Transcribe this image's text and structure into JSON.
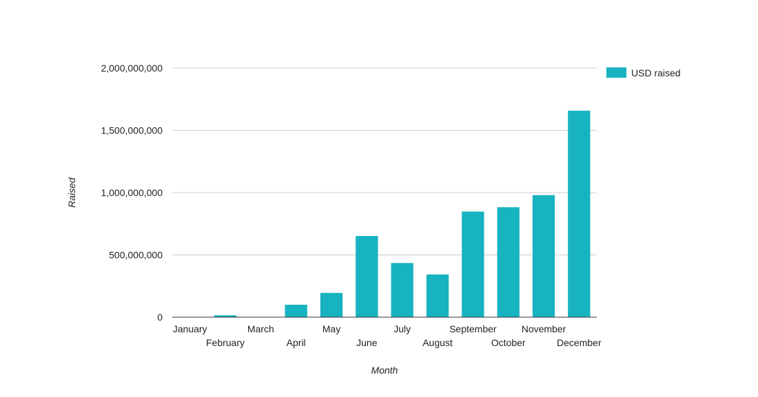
{
  "chart_data": {
    "type": "bar",
    "title": "",
    "xlabel": "Month",
    "ylabel": "Raised",
    "ylim": [
      0,
      2000000000
    ],
    "yticks": [
      0,
      500000000,
      1000000000,
      1500000000,
      2000000000
    ],
    "ytick_labels": [
      "0",
      "500,000,000",
      "1,000,000,000",
      "1,500,000,000",
      "2,000,000,000"
    ],
    "categories": [
      "January",
      "February",
      "March",
      "April",
      "May",
      "June",
      "July",
      "August",
      "September",
      "October",
      "November",
      "December"
    ],
    "series": [
      {
        "name": "USD raised",
        "color": "#17b3c1",
        "values": [
          2000000,
          15000000,
          3000000,
          100000000,
          195000000,
          652000000,
          435000000,
          343000000,
          848000000,
          883000000,
          980000000,
          1658000000
        ]
      }
    ],
    "grid": true,
    "legend_position": "top-right"
  }
}
